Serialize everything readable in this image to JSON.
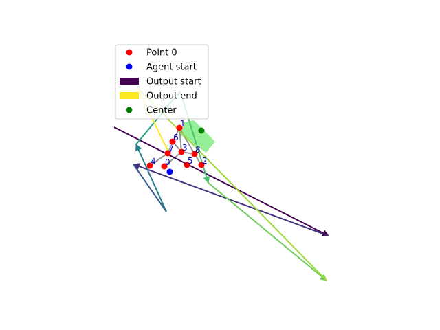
{
  "chart_data": {
    "type": "scatter",
    "axes_visible": false,
    "xlim": [
      0,
      640
    ],
    "ylim": [
      480,
      0
    ],
    "legend_placement": "upper-left",
    "legend": [
      {
        "label": "Point 0",
        "kind": "marker",
        "color": "#ff0000"
      },
      {
        "label": "Agent start",
        "kind": "marker",
        "color": "#0000ff"
      },
      {
        "label": "Output start",
        "kind": "patch",
        "color": "#440154"
      },
      {
        "label": "Output end",
        "kind": "patch",
        "color": "#fde725"
      },
      {
        "label": "Center",
        "kind": "marker",
        "color": "#008000"
      }
    ],
    "points": [
      {
        "label": "0",
        "x": 239,
        "y": 242
      },
      {
        "label": "1",
        "x": 261,
        "y": 186
      },
      {
        "label": "2",
        "x": 293,
        "y": 240
      },
      {
        "label": "3",
        "x": 264,
        "y": 221
      },
      {
        "label": "4",
        "x": 218,
        "y": 241
      },
      {
        "label": "5",
        "x": 272,
        "y": 240
      },
      {
        "label": "6",
        "x": 251,
        "y": 206
      },
      {
        "label": "7",
        "x": 244,
        "y": 223
      },
      {
        "label": "8",
        "x": 283,
        "y": 224
      }
    ],
    "agent_start": {
      "x": 247,
      "y": 250
    },
    "center": {
      "x": 293,
      "y": 190
    },
    "shape_edges": [
      [
        4,
        7
      ],
      [
        7,
        1
      ],
      [
        1,
        3
      ],
      [
        3,
        8
      ],
      [
        8,
        2
      ],
      [
        1,
        8
      ],
      [
        6,
        3
      ],
      [
        3,
        0
      ]
    ],
    "highlight_polygon": [
      [
        268,
        178
      ],
      [
        282,
        175
      ],
      [
        313,
        206
      ],
      [
        300,
        222
      ],
      [
        262,
        196
      ]
    ],
    "trajectory": [
      {
        "from": [
          166,
          185
        ],
        "to": [
          478,
          343
        ],
        "color": "#440154",
        "arrow": true
      },
      {
        "from": [
          478,
          343
        ],
        "to": [
          194,
          239
        ],
        "color": "#46327e",
        "arrow": true
      },
      {
        "from": [
          194,
          239
        ],
        "to": [
          242,
          308
        ],
        "color": "#365c8d",
        "arrow": false
      },
      {
        "from": [
          242,
          308
        ],
        "to": [
          198,
          210
        ],
        "color": "#277f8e",
        "arrow": true
      },
      {
        "from": [
          198,
          210
        ],
        "to": [
          262,
          133
        ],
        "color": "#1fa187",
        "arrow": false
      },
      {
        "from": [
          262,
          133
        ],
        "to": [
          303,
          266
        ],
        "color": "#4ac16d",
        "arrow": true
      },
      {
        "from": [
          303,
          266
        ],
        "to": [
          475,
          408
        ],
        "color": "#6ece58",
        "arrow": true
      },
      {
        "from": [
          475,
          408
        ],
        "to": [
          200,
          128
        ],
        "color": "#a0da39",
        "arrow": false
      },
      {
        "from": [
          200,
          128
        ],
        "to": [
          244,
          219
        ],
        "color": "#fde725",
        "arrow": false
      }
    ]
  }
}
